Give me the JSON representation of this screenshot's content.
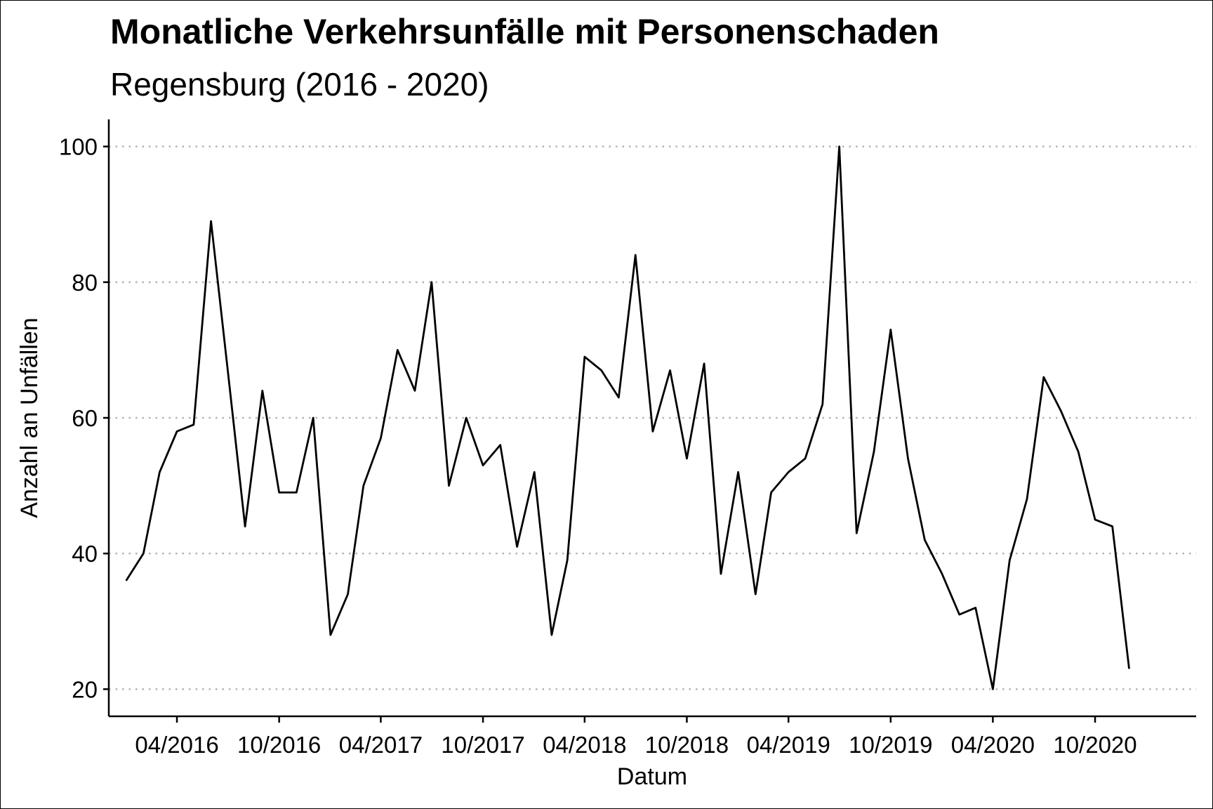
{
  "chart_data": {
    "type": "line",
    "title": "Monatliche Verkehrsunfälle mit Personenschaden",
    "subtitle": "Regensburg (2016 - 2020)",
    "xlabel": "Datum",
    "ylabel": "Anzahl an Unfällen",
    "x_range": [
      "2015-12-01",
      "2021-03-31"
    ],
    "ylim": [
      16,
      104
    ],
    "y_ticks": [
      20,
      40,
      60,
      80,
      100
    ],
    "x_ticks": [
      {
        "date": "2016-04-01",
        "label": "04/2016"
      },
      {
        "date": "2016-10-01",
        "label": "10/2016"
      },
      {
        "date": "2017-04-01",
        "label": "04/2017"
      },
      {
        "date": "2017-10-01",
        "label": "10/2017"
      },
      {
        "date": "2018-04-01",
        "label": "04/2018"
      },
      {
        "date": "2018-10-01",
        "label": "10/2018"
      },
      {
        "date": "2019-04-01",
        "label": "04/2019"
      },
      {
        "date": "2019-10-01",
        "label": "10/2019"
      },
      {
        "date": "2020-04-01",
        "label": "04/2020"
      },
      {
        "date": "2020-10-01",
        "label": "10/2020"
      }
    ],
    "grid": {
      "horizontal": true,
      "vertical": false,
      "style": "dotted"
    },
    "line_color": "#000000",
    "grid_color": "#b3b3b3",
    "x": [
      "2016-01-01",
      "2016-02-01",
      "2016-03-01",
      "2016-04-01",
      "2016-05-01",
      "2016-06-01",
      "2016-07-01",
      "2016-08-01",
      "2016-09-01",
      "2016-10-01",
      "2016-11-01",
      "2016-12-01",
      "2017-01-01",
      "2017-02-01",
      "2017-03-01",
      "2017-04-01",
      "2017-05-01",
      "2017-06-01",
      "2017-07-01",
      "2017-08-01",
      "2017-09-01",
      "2017-10-01",
      "2017-11-01",
      "2017-12-01",
      "2018-01-01",
      "2018-02-01",
      "2018-03-01",
      "2018-04-01",
      "2018-05-01",
      "2018-06-01",
      "2018-07-01",
      "2018-08-01",
      "2018-09-01",
      "2018-10-01",
      "2018-11-01",
      "2018-12-01",
      "2019-01-01",
      "2019-02-01",
      "2019-03-01",
      "2019-04-01",
      "2019-05-01",
      "2019-06-01",
      "2019-07-01",
      "2019-08-01",
      "2019-09-01",
      "2019-10-01",
      "2019-11-01",
      "2019-12-01",
      "2020-01-01",
      "2020-02-01",
      "2020-03-01",
      "2020-04-01",
      "2020-05-01",
      "2020-06-01",
      "2020-07-01",
      "2020-08-01",
      "2020-09-01",
      "2020-10-01",
      "2020-11-01",
      "2020-12-01"
    ],
    "series": [
      {
        "values": [
          36,
          40,
          52,
          58,
          59,
          89,
          67,
          44,
          64,
          49,
          49,
          60,
          28,
          34,
          50,
          57,
          70,
          64,
          80,
          50,
          60,
          53,
          56,
          41,
          52,
          28,
          39,
          69,
          67,
          63,
          84,
          58,
          67,
          54,
          68,
          37,
          52,
          34,
          49,
          52,
          54,
          62,
          100,
          43,
          55,
          73,
          54,
          42,
          37,
          31,
          32,
          20,
          39,
          48,
          66,
          61,
          55,
          45,
          44,
          23
        ]
      }
    ]
  }
}
